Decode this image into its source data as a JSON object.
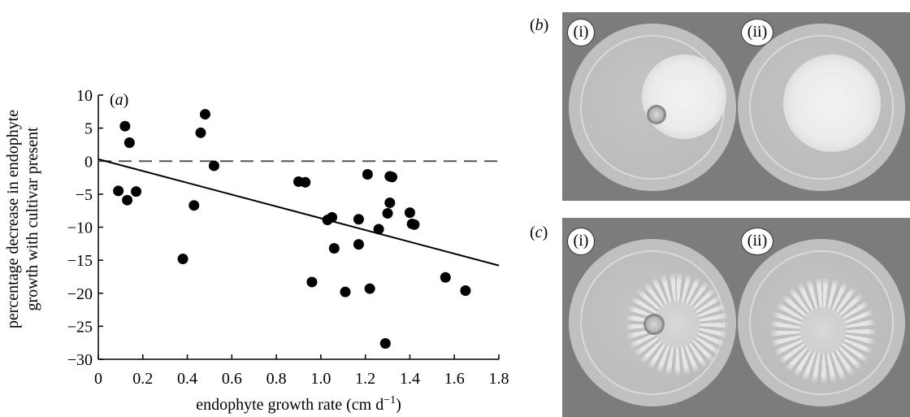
{
  "chart_data": {
    "type": "scatter",
    "panel_label": "a",
    "xlabel_main": "endophyte growth rate (cm d",
    "xlabel_sup": "−1",
    "xlabel_close": ")",
    "ylabel_line1": "percentage decrease in endophyte",
    "ylabel_line2": "growth with cultivar present",
    "xlim": [
      0,
      1.8
    ],
    "ylim": [
      -30,
      10
    ],
    "xticks": [
      "0",
      "0.2",
      "0.4",
      "0.6",
      "0.8",
      "1.0",
      "1.2",
      "1.4",
      "1.6",
      "1.8"
    ],
    "yticks": [
      "10",
      "5",
      "0",
      "−5",
      "−10",
      "−15",
      "−20",
      "−25",
      "−30"
    ],
    "reference_line": {
      "y": 0,
      "style": "dashed"
    },
    "fit_line": {
      "x": [
        0,
        1.8
      ],
      "y": [
        0.3,
        -15.8
      ]
    },
    "points": [
      [
        0.09,
        -4.5
      ],
      [
        0.12,
        5.3
      ],
      [
        0.13,
        -5.9
      ],
      [
        0.14,
        2.8
      ],
      [
        0.17,
        -4.6
      ],
      [
        0.38,
        -14.8
      ],
      [
        0.43,
        -6.7
      ],
      [
        0.46,
        4.3
      ],
      [
        0.48,
        7.1
      ],
      [
        0.52,
        -0.7
      ],
      [
        0.9,
        -3.1
      ],
      [
        0.93,
        -3.2
      ],
      [
        0.96,
        -18.3
      ],
      [
        1.03,
        -8.9
      ],
      [
        1.05,
        -8.5
      ],
      [
        1.06,
        -13.2
      ],
      [
        1.11,
        -19.8
      ],
      [
        1.17,
        -12.6
      ],
      [
        1.17,
        -8.8
      ],
      [
        1.21,
        -2.0
      ],
      [
        1.22,
        -19.3
      ],
      [
        1.26,
        -10.3
      ],
      [
        1.29,
        -27.6
      ],
      [
        1.3,
        -7.9
      ],
      [
        1.31,
        -2.3
      ],
      [
        1.31,
        -6.3
      ],
      [
        1.32,
        -2.4
      ],
      [
        1.4,
        -7.8
      ],
      [
        1.41,
        -9.5
      ],
      [
        1.42,
        -9.6
      ],
      [
        1.56,
        -17.6
      ],
      [
        1.65,
        -19.6
      ]
    ]
  },
  "panels": {
    "b": {
      "label": "b",
      "plates": [
        "i",
        "ii"
      ]
    },
    "c": {
      "label": "c",
      "plates": [
        "i",
        "ii"
      ]
    }
  }
}
